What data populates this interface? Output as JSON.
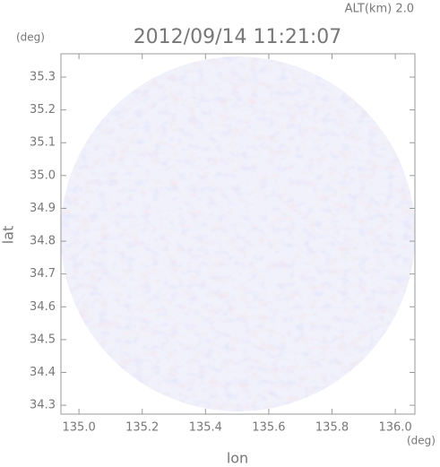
{
  "chart_data": {
    "type": "heatmap",
    "title": "2012/09/14 11:21:07",
    "annotation": "ALT(km) 2.0",
    "x_label": "lon",
    "y_label": "lat",
    "x_unit": "(deg)",
    "y_unit": "(deg)",
    "xlim": [
      134.943,
      136.062
    ],
    "ylim": [
      34.273,
      35.371
    ],
    "xticks": [
      {
        "value": 135.0,
        "label": "135.0"
      },
      135.2,
      135.4,
      135.6,
      135.8,
      {
        "value": 136.0,
        "label": "136.0"
      }
    ],
    "yticks": [
      34.3,
      34.4,
      34.5,
      34.6,
      34.7,
      34.8,
      34.9,
      {
        "value": 35.0,
        "label": "35.0"
      },
      35.1,
      35.2,
      35.3
    ]
  }
}
